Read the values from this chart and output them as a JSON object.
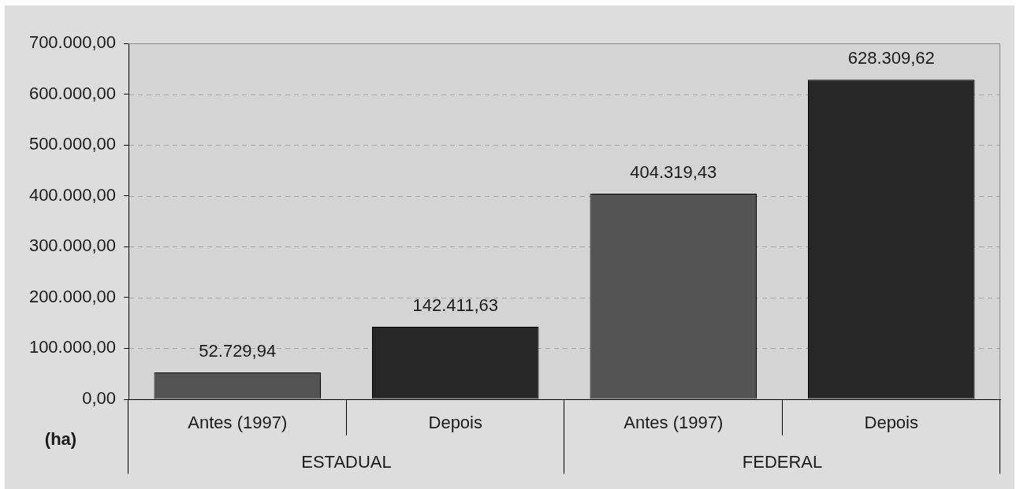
{
  "chart_data": {
    "type": "bar",
    "ylabel": "(ha)",
    "categories": [
      "ESTADUAL",
      "FEDERAL"
    ],
    "series": [
      {
        "name": "Antes (1997)",
        "color": "#545454",
        "values": [
          52729.94,
          404319.43
        ],
        "value_labels": [
          "52.729,94",
          "404.319,43"
        ]
      },
      {
        "name": "Depois",
        "color": "#282828",
        "values": [
          142411.63,
          628309.62
        ],
        "value_labels": [
          "142.411,63",
          "628.309,62"
        ]
      }
    ],
    "ylim": [
      0,
      700000
    ],
    "yticks": [
      {
        "value": 0,
        "label": "0,00"
      },
      {
        "value": 100000,
        "label": "100.000,00"
      },
      {
        "value": 200000,
        "label": "200.000,00"
      },
      {
        "value": 300000,
        "label": "300.000,00"
      },
      {
        "value": 400000,
        "label": "400.000,00"
      },
      {
        "value": 500000,
        "label": "500.000,00"
      },
      {
        "value": 600000,
        "label": "600.000,00"
      },
      {
        "value": 700000,
        "label": "700.000,00"
      }
    ],
    "grid": "y"
  }
}
